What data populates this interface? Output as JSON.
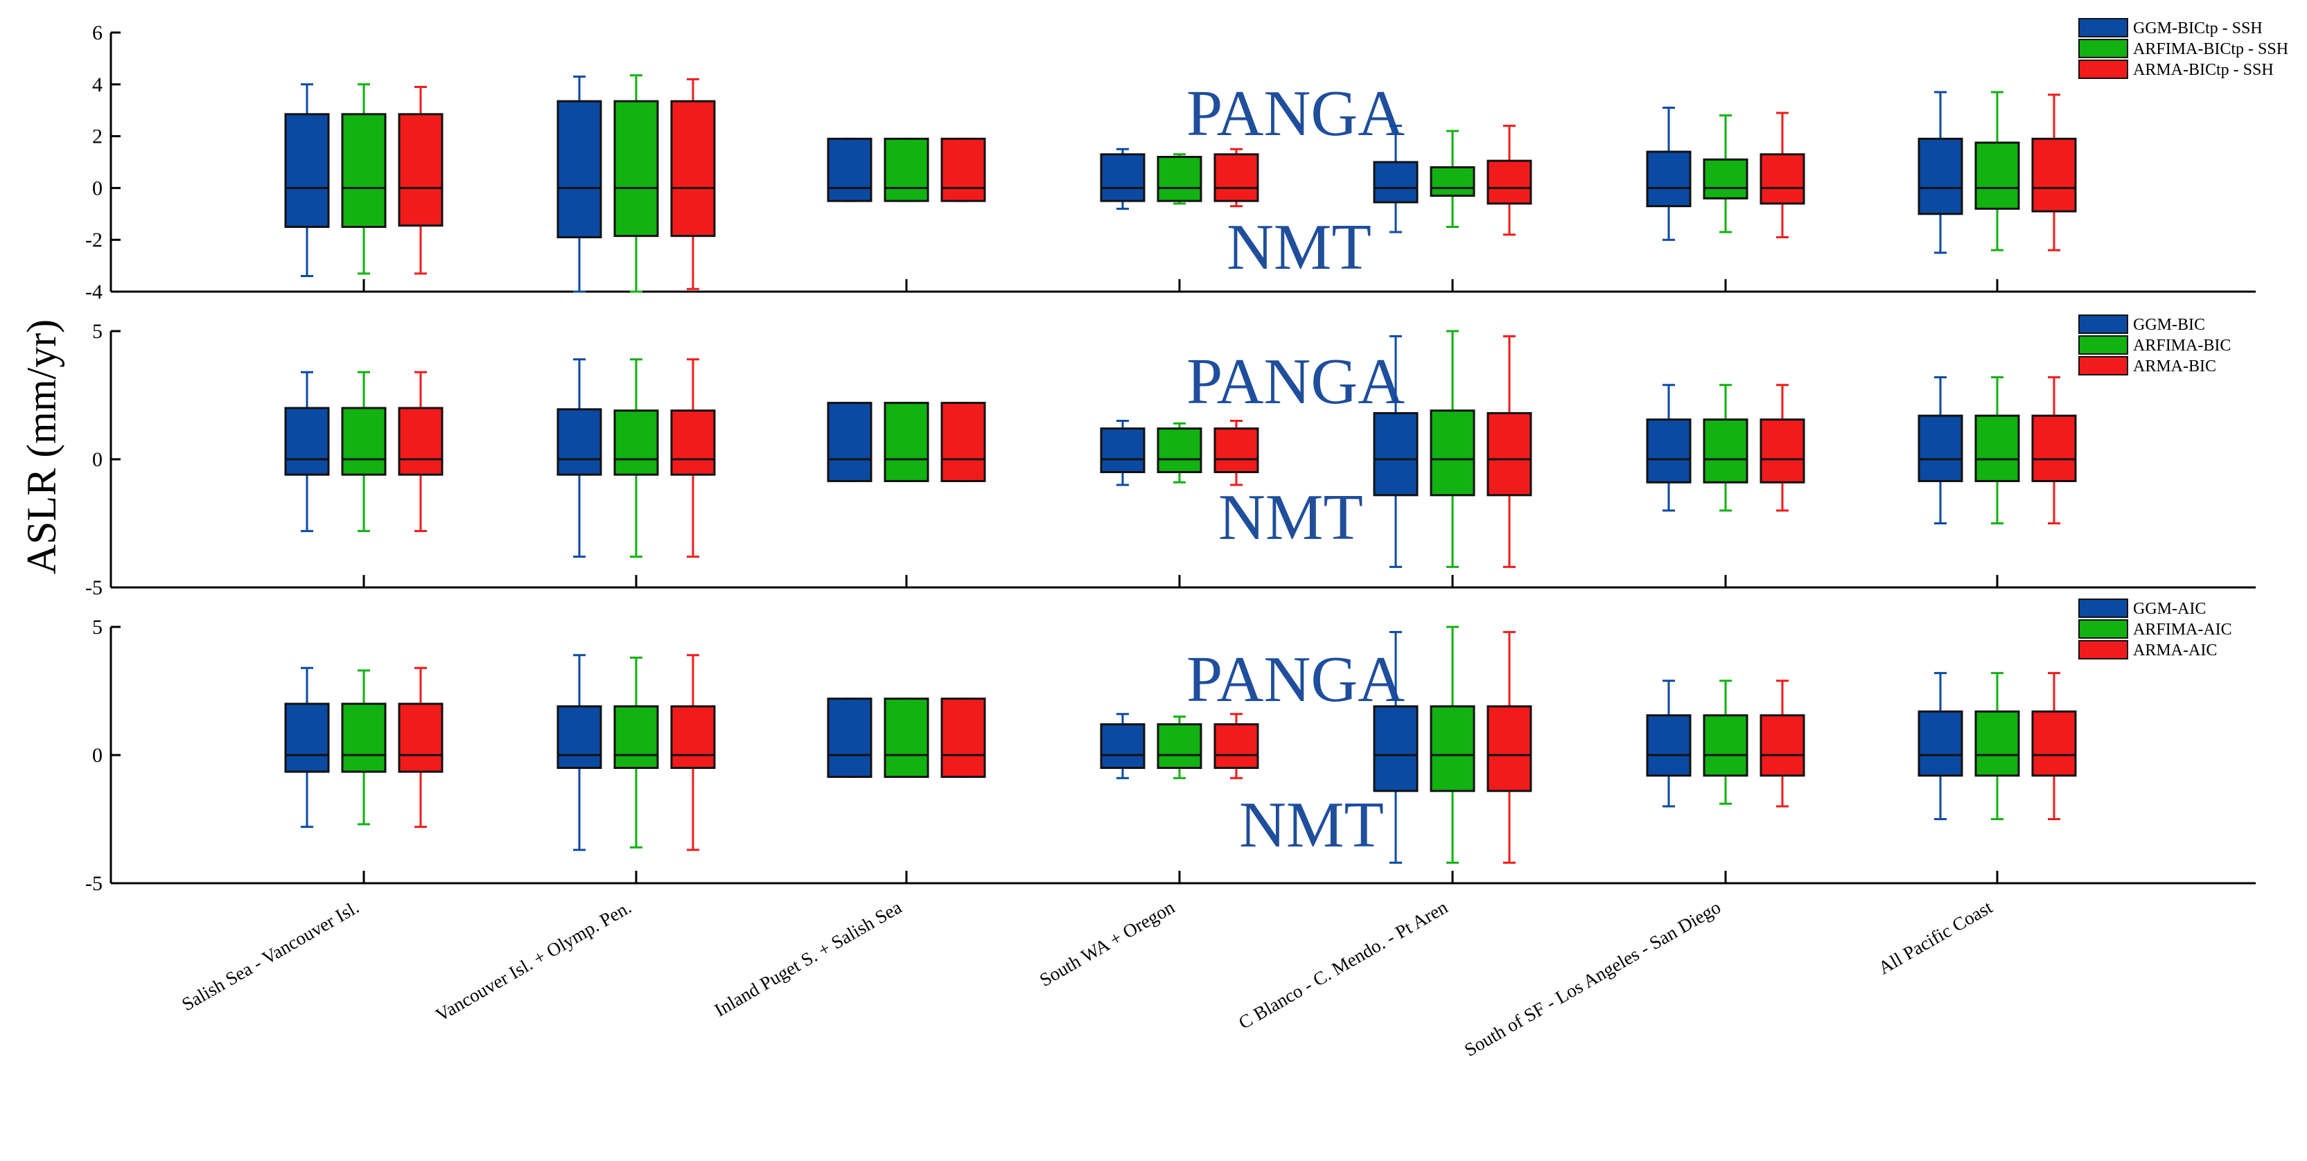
{
  "chart_data": {
    "type": "box",
    "ylabel": "ASLR (mm/yr)",
    "categories": [
      "Salish Sea - Vancouver Isl.",
      "Vancouver Isl. + Olymp. Pen.",
      "Inland Puget S. + Salish Sea",
      "South WA + Oregon",
      "C Blanco - C. Mendo. - Pt Aren",
      "South of SF - Los Angeles - San Diego",
      "All Pacific Coast"
    ],
    "series_colors": [
      "#0b4aa2",
      "#11b211",
      "#f21b1b"
    ],
    "panels": [
      {
        "name": "top",
        "ylim": [
          -4,
          6
        ],
        "yticks": [
          6,
          4,
          2,
          0,
          -2,
          -4
        ],
        "ytick_labels": [
          "6",
          "4",
          "2",
          "0",
          "-2",
          "-4"
        ],
        "annotations": [
          "PANGA",
          "NMT"
        ],
        "legend": [
          "GGM-BICtp - SSH",
          "ARFIMA-BICtp - SSH",
          "ARMA-BICtp - SSH"
        ],
        "boxes": [
          [
            [
              -3.4,
              -1.5,
              0,
              2.85,
              4.0
            ],
            [
              -3.3,
              -1.5,
              0,
              2.85,
              4.0
            ],
            [
              -3.3,
              -1.45,
              0,
              2.85,
              3.9
            ]
          ],
          [
            [
              -4.0,
              -1.9,
              0,
              3.35,
              4.3
            ],
            [
              -4.0,
              -1.85,
              0,
              3.35,
              4.35
            ],
            [
              -3.9,
              -1.85,
              0,
              3.35,
              4.2
            ]
          ],
          [
            [
              -0.5,
              -0.5,
              0,
              1.9,
              1.9
            ],
            [
              -0.5,
              -0.5,
              0,
              1.9,
              1.9
            ],
            [
              -0.5,
              -0.5,
              0,
              1.9,
              1.9
            ]
          ],
          [
            [
              -0.8,
              -0.5,
              0,
              1.3,
              1.5
            ],
            [
              -0.6,
              -0.5,
              0,
              1.2,
              1.3
            ],
            [
              -0.7,
              -0.5,
              0,
              1.3,
              1.5
            ]
          ],
          [
            [
              -1.7,
              -0.55,
              0,
              1.0,
              2.4
            ],
            [
              -1.5,
              -0.3,
              0,
              0.8,
              2.2
            ],
            [
              -1.8,
              -0.6,
              0,
              1.05,
              2.4
            ]
          ],
          [
            [
              -2.0,
              -0.7,
              0,
              1.4,
              3.1
            ],
            [
              -1.7,
              -0.4,
              0,
              1.1,
              2.8
            ],
            [
              -1.9,
              -0.6,
              0,
              1.3,
              2.9
            ]
          ],
          [
            [
              -2.5,
              -1.0,
              0,
              1.9,
              3.7
            ],
            [
              -2.4,
              -0.8,
              0,
              1.75,
              3.7
            ],
            [
              -2.4,
              -0.9,
              0,
              1.9,
              3.6
            ]
          ]
        ]
      },
      {
        "name": "middle",
        "ylim": [
          -5,
          5
        ],
        "yticks": [
          5,
          0,
          -5
        ],
        "ytick_labels": [
          "5",
          "0",
          "-5"
        ],
        "annotations": [
          "PANGA",
          "NMT"
        ],
        "legend": [
          "GGM-BIC",
          "ARFIMA-BIC",
          "ARMA-BIC"
        ],
        "boxes": [
          [
            [
              -2.8,
              -0.6,
              0,
              2.0,
              3.4
            ],
            [
              -2.8,
              -0.6,
              0,
              2.0,
              3.4
            ],
            [
              -2.8,
              -0.6,
              0,
              2.0,
              3.4
            ]
          ],
          [
            [
              -3.8,
              -0.6,
              0,
              1.95,
              3.9
            ],
            [
              -3.8,
              -0.6,
              0,
              1.9,
              3.9
            ],
            [
              -3.8,
              -0.6,
              0,
              1.9,
              3.9
            ]
          ],
          [
            [
              -0.85,
              -0.85,
              0,
              2.2,
              2.2
            ],
            [
              -0.85,
              -0.85,
              0,
              2.2,
              2.2
            ],
            [
              -0.85,
              -0.85,
              0,
              2.2,
              2.2
            ]
          ],
          [
            [
              -1.0,
              -0.5,
              0,
              1.2,
              1.5
            ],
            [
              -0.9,
              -0.5,
              0,
              1.2,
              1.4
            ],
            [
              -1.0,
              -0.5,
              0,
              1.2,
              1.5
            ]
          ],
          [
            [
              -4.2,
              -1.4,
              0,
              1.8,
              4.8
            ],
            [
              -4.2,
              -1.4,
              0,
              1.9,
              5.0
            ],
            [
              -4.2,
              -1.4,
              0,
              1.8,
              4.8
            ]
          ],
          [
            [
              -2.0,
              -0.9,
              0,
              1.55,
              2.9
            ],
            [
              -2.0,
              -0.9,
              0,
              1.55,
              2.9
            ],
            [
              -2.0,
              -0.9,
              0,
              1.55,
              2.9
            ]
          ],
          [
            [
              -2.5,
              -0.85,
              0,
              1.7,
              3.2
            ],
            [
              -2.5,
              -0.85,
              0,
              1.7,
              3.2
            ],
            [
              -2.5,
              -0.85,
              0,
              1.7,
              3.2
            ]
          ]
        ]
      },
      {
        "name": "bottom",
        "ylim": [
          -5,
          5
        ],
        "yticks": [
          5,
          0,
          -5
        ],
        "ytick_labels": [
          "5",
          "0",
          "-5"
        ],
        "annotations": [
          "PANGA",
          "NMT"
        ],
        "legend": [
          "GGM-AIC",
          "ARFIMA-AIC",
          "ARMA-AIC"
        ],
        "boxes": [
          [
            [
              -2.8,
              -0.65,
              0,
              2.0,
              3.4
            ],
            [
              -2.7,
              -0.65,
              0,
              2.0,
              3.3
            ],
            [
              -2.8,
              -0.65,
              0,
              2.0,
              3.4
            ]
          ],
          [
            [
              -3.7,
              -0.5,
              0,
              1.9,
              3.9
            ],
            [
              -3.6,
              -0.5,
              0,
              1.9,
              3.8
            ],
            [
              -3.7,
              -0.5,
              0,
              1.9,
              3.9
            ]
          ],
          [
            [
              -0.85,
              -0.85,
              0,
              2.2,
              2.2
            ],
            [
              -0.85,
              -0.85,
              0,
              2.2,
              2.2
            ],
            [
              -0.85,
              -0.85,
              0,
              2.2,
              2.2
            ]
          ],
          [
            [
              -0.9,
              -0.5,
              0,
              1.2,
              1.6
            ],
            [
              -0.9,
              -0.5,
              0,
              1.2,
              1.5
            ],
            [
              -0.9,
              -0.5,
              0,
              1.2,
              1.6
            ]
          ],
          [
            [
              -4.2,
              -1.4,
              0,
              1.9,
              4.8
            ],
            [
              -4.2,
              -1.4,
              0,
              1.9,
              5.0
            ],
            [
              -4.2,
              -1.4,
              0,
              1.9,
              4.8
            ]
          ],
          [
            [
              -2.0,
              -0.8,
              0,
              1.55,
              2.9
            ],
            [
              -1.9,
              -0.8,
              0,
              1.55,
              2.9
            ],
            [
              -2.0,
              -0.8,
              0,
              1.55,
              2.9
            ]
          ],
          [
            [
              -2.5,
              -0.8,
              0,
              1.7,
              3.2
            ],
            [
              -2.5,
              -0.8,
              0,
              1.7,
              3.2
            ],
            [
              -2.5,
              -0.8,
              0,
              1.7,
              3.2
            ]
          ]
        ]
      }
    ]
  }
}
